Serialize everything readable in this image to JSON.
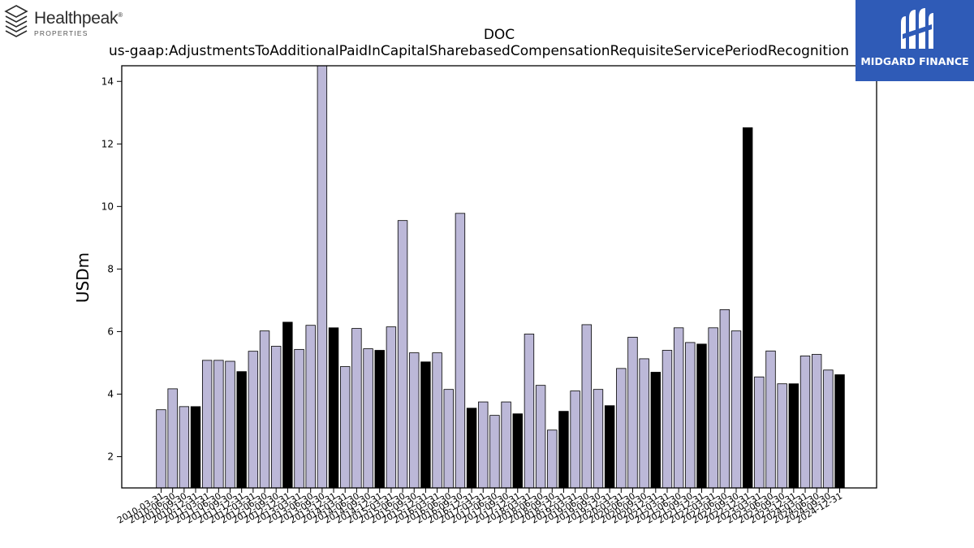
{
  "logos": {
    "left": {
      "name": "Healthpeak",
      "mark": "®",
      "subtitle": "PROPERTIES",
      "icon": "stacked-layers-icon"
    },
    "right": {
      "name": "MIDGARD FINANCE",
      "icon": "midgard-monogram-icon",
      "background": "#2f5bb7"
    }
  },
  "colors": {
    "bar_regular": "#bcb8d8",
    "bar_highlight": "#000000",
    "edge": "#000000"
  },
  "chart_data": {
    "type": "bar",
    "title": "DOC",
    "subtitle": "us-gaap:AdjustmentsToAdditionalPaidInCapitalSharebasedCompensationRequisiteServicePeriodRecognition",
    "xlabel": "",
    "ylabel": "USDm",
    "ylim": [
      1,
      14.5
    ],
    "yticks": [
      2,
      4,
      6,
      8,
      10,
      12,
      14
    ],
    "grid": false,
    "legend": "none",
    "categories": [
      "2010-03-31",
      "2010-06-30",
      "2010-09-30",
      "2010-12-31",
      "2011-03-31",
      "2011-06-30",
      "2011-09-30",
      "2011-12-31",
      "2012-03-31",
      "2012-06-30",
      "2012-09-30",
      "2012-12-31",
      "2013-03-31",
      "2013-06-30",
      "2013-09-30",
      "2013-12-31",
      "2014-03-31",
      "2014-06-30",
      "2014-09-30",
      "2014-12-31",
      "2015-03-31",
      "2015-06-30",
      "2015-09-30",
      "2015-12-31",
      "2016-03-31",
      "2016-06-30",
      "2016-09-30",
      "2016-12-31",
      "2017-03-31",
      "2017-06-30",
      "2017-09-30",
      "2017-12-31",
      "2018-03-31",
      "2018-06-30",
      "2018-09-30",
      "2018-12-31",
      "2019-03-31",
      "2019-06-30",
      "2019-09-30",
      "2019-12-31",
      "2020-03-31",
      "2020-06-30",
      "2020-09-30",
      "2020-12-31",
      "2021-03-31",
      "2021-06-30",
      "2021-09-30",
      "2021-12-31",
      "2022-03-31",
      "2022-06-30",
      "2022-09-30",
      "2022-12-31",
      "2023-03-31",
      "2023-06-30",
      "2023-09-30",
      "2023-12-31",
      "2024-03-31",
      "2024-06-30",
      "2024-09-30",
      "2024-12-31"
    ],
    "values": [
      3.5,
      4.17,
      3.6,
      3.6,
      5.08,
      5.08,
      5.05,
      4.72,
      5.37,
      6.02,
      5.53,
      6.3,
      5.43,
      6.2,
      14.5,
      6.12,
      4.88,
      6.1,
      5.45,
      5.4,
      6.15,
      9.55,
      5.32,
      5.03,
      5.32,
      4.15,
      9.78,
      3.55,
      3.75,
      3.32,
      3.75,
      3.37,
      5.92,
      4.28,
      2.85,
      3.45,
      4.1,
      6.22,
      4.15,
      3.63,
      4.82,
      5.82,
      5.13,
      4.7,
      5.4,
      6.12,
      5.65,
      5.6,
      6.12,
      6.7,
      6.02,
      12.52,
      4.55,
      5.38,
      4.33,
      4.33,
      5.22,
      5.27,
      4.77,
      4.62
    ],
    "highlight_indices": [
      3,
      7,
      11,
      15,
      19,
      23,
      27,
      31,
      35,
      39,
      43,
      47,
      51,
      55,
      59
    ]
  }
}
